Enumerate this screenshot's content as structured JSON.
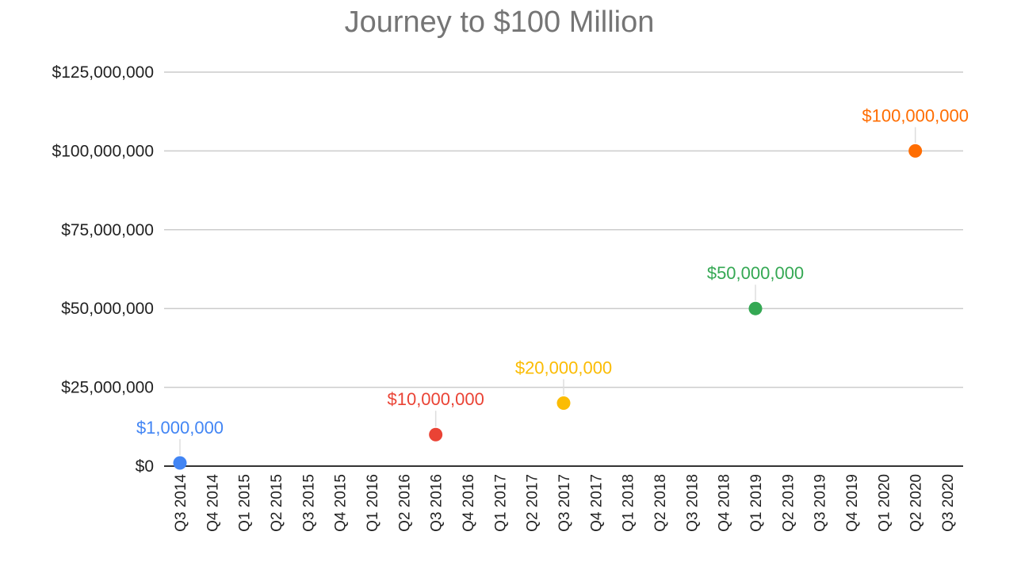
{
  "chart_data": {
    "type": "scatter",
    "title": "Journey to $100 Million",
    "xlabel": "",
    "ylabel": "",
    "ylim": [
      0,
      125000000
    ],
    "ytick_step": 25000000,
    "ytick_labels": [
      "$0",
      "$25,000,000",
      "$50,000,000",
      "$75,000,000",
      "$100,000,000",
      "$125,000,000"
    ],
    "grid": true,
    "legend": "none",
    "categories": [
      "Q3 2014",
      "Q4 2014",
      "Q1 2015",
      "Q2 2015",
      "Q3 2015",
      "Q4 2015",
      "Q1 2016",
      "Q2 2016",
      "Q3 2016",
      "Q4 2016",
      "Q1 2017",
      "Q2 2017",
      "Q3 2017",
      "Q4 2017",
      "Q1 2018",
      "Q2 2018",
      "Q3 2018",
      "Q4 2018",
      "Q1 2019",
      "Q2 2019",
      "Q3 2019",
      "Q4 2019",
      "Q1 2020",
      "Q2 2020",
      "Q3 2020"
    ],
    "points": [
      {
        "x": "Q3 2014",
        "y": 1000000,
        "label": "$1,000,000",
        "color": "#4285F4"
      },
      {
        "x": "Q3 2016",
        "y": 10000000,
        "label": "$10,000,000",
        "color": "#EA4335"
      },
      {
        "x": "Q3 2017",
        "y": 20000000,
        "label": "$20,000,000",
        "color": "#FBBC04"
      },
      {
        "x": "Q1 2019",
        "y": 50000000,
        "label": "$50,000,000",
        "color": "#34A853"
      },
      {
        "x": "Q2 2020",
        "y": 100000000,
        "label": "$100,000,000",
        "color": "#FF6D01"
      }
    ]
  }
}
